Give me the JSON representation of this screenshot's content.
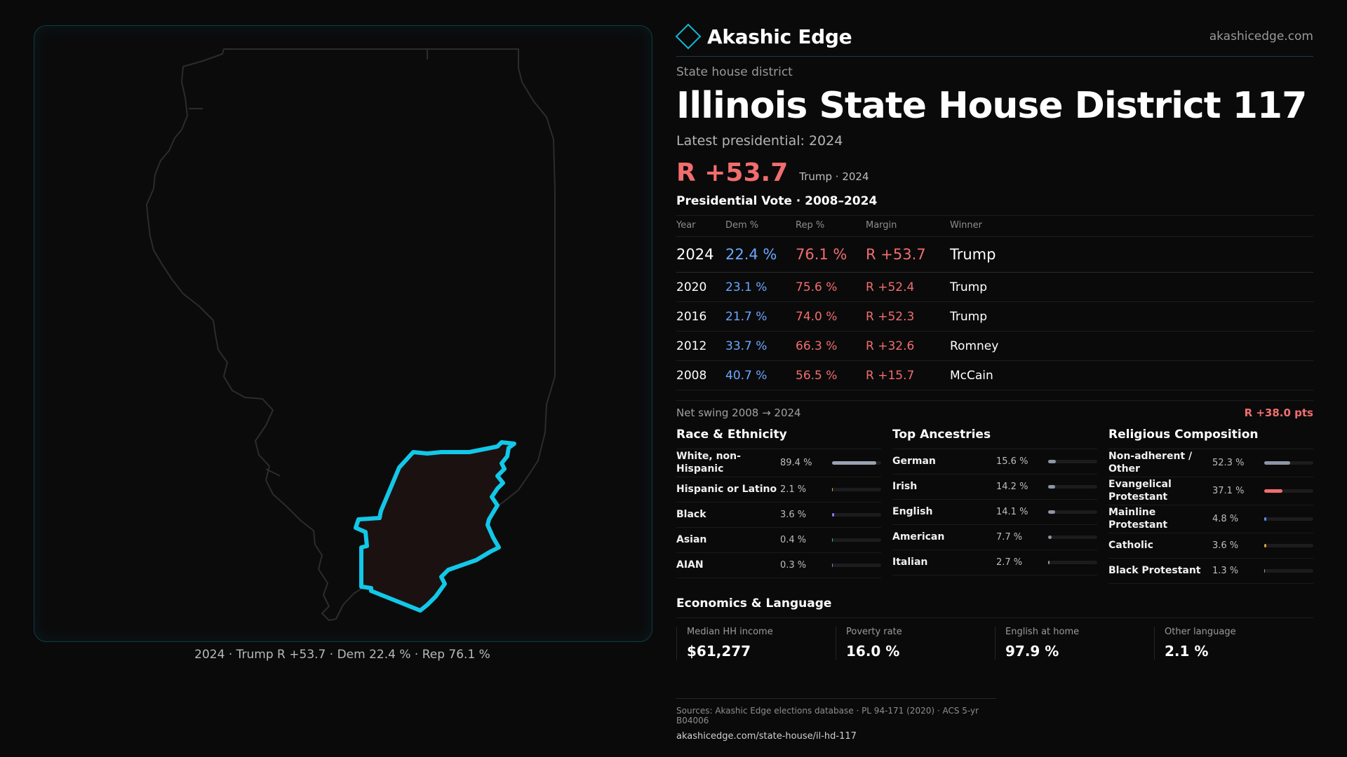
{
  "map": {
    "caption": "2024 · Trump R +53.7 · Dem 22.4 % · Rep 76.1 %"
  },
  "brand": {
    "name": "Akashic Edge",
    "url": "akashicedge.com"
  },
  "header": {
    "kicker": "State house district",
    "title": "Illinois State House District 117",
    "latest_label": "Latest presidential: 2024",
    "margin": "R +53.7",
    "margin_sub": "Trump · 2024"
  },
  "votes": {
    "title": "Presidential Vote · 2008–2024",
    "headers": [
      "Year",
      "Dem %",
      "Rep %",
      "Margin",
      "Winner"
    ],
    "rows": [
      {
        "year": "2024",
        "dem": "22.4 %",
        "rep": "76.1 %",
        "margin": "R +53.7",
        "winner": "Trump"
      },
      {
        "year": "2020",
        "dem": "23.1 %",
        "rep": "75.6 %",
        "margin": "R +52.4",
        "winner": "Trump"
      },
      {
        "year": "2016",
        "dem": "21.7 %",
        "rep": "74.0 %",
        "margin": "R +52.3",
        "winner": "Trump"
      },
      {
        "year": "2012",
        "dem": "33.7 %",
        "rep": "66.3 %",
        "margin": "R +32.6",
        "winner": "Romney"
      },
      {
        "year": "2008",
        "dem": "40.7 %",
        "rep": "56.5 %",
        "margin": "R +15.7",
        "winner": "McCain"
      }
    ],
    "swing_label": "Net swing 2008 → 2024",
    "swing_value": "R +38.0 pts"
  },
  "race": {
    "title": "Race & Ethnicity",
    "items": [
      {
        "label": "White, non-Hispanic",
        "pct": "89.4 %",
        "value": 89.4,
        "color": "#9aa3b0"
      },
      {
        "label": "Hispanic or Latino",
        "pct": "2.1 %",
        "value": 2.1,
        "color": "#d4a13a"
      },
      {
        "label": "Black",
        "pct": "3.6 %",
        "value": 3.6,
        "color": "#7b7bff"
      },
      {
        "label": "Asian",
        "pct": "0.4 %",
        "value": 0.4,
        "color": "#3fb68b"
      },
      {
        "label": "AIAN",
        "pct": "0.3 %",
        "value": 0.3,
        "color": "#b06ad0"
      }
    ]
  },
  "ancestry": {
    "title": "Top Ancestries",
    "items": [
      {
        "label": "German",
        "pct": "15.6 %",
        "value": 15.6,
        "color": "#8d96a3"
      },
      {
        "label": "Irish",
        "pct": "14.2 %",
        "value": 14.2,
        "color": "#8d96a3"
      },
      {
        "label": "English",
        "pct": "14.1 %",
        "value": 14.1,
        "color": "#8d96a3"
      },
      {
        "label": "American",
        "pct": "7.7 %",
        "value": 7.7,
        "color": "#8d96a3"
      },
      {
        "label": "Italian",
        "pct": "2.7 %",
        "value": 2.7,
        "color": "#8d96a3"
      }
    ]
  },
  "religion": {
    "title": "Religious Composition",
    "items": [
      {
        "label": "Non-adherent / Other",
        "pct": "52.3 %",
        "value": 52.3,
        "color": "#8d96a3"
      },
      {
        "label": "Evangelical Protestant",
        "pct": "37.1 %",
        "value": 37.1,
        "color": "#f26d6d"
      },
      {
        "label": "Mainline Protestant",
        "pct": "4.8 %",
        "value": 4.8,
        "color": "#5b8dff"
      },
      {
        "label": "Catholic",
        "pct": "3.6 %",
        "value": 3.6,
        "color": "#d4a13a"
      },
      {
        "label": "Black Protestant",
        "pct": "1.3 %",
        "value": 1.3,
        "color": "#8d96a3"
      }
    ]
  },
  "economics": {
    "title": "Economics & Language",
    "items": [
      {
        "label": "Median HH income",
        "value": "$61,277"
      },
      {
        "label": "Poverty rate",
        "value": "16.0 %"
      },
      {
        "label": "English at home",
        "value": "97.9 %"
      },
      {
        "label": "Other language",
        "value": "2.1 %"
      }
    ]
  },
  "sources": {
    "line": "Sources: Akashic Edge elections database · PL 94-171 (2020) · ACS 5-yr B04006",
    "url": "akashicedge.com/state-house/il-hd-117"
  }
}
